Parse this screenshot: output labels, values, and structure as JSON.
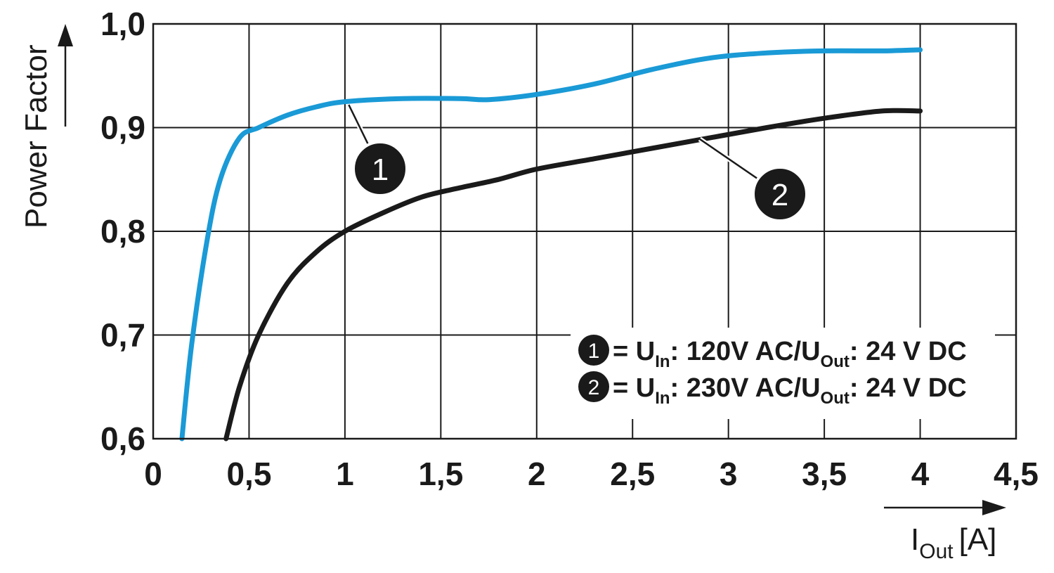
{
  "chart_data": {
    "type": "line",
    "xlabel": "I",
    "xlabel_sub": "Out",
    "xlabel_unit": "[A]",
    "ylabel": "Power Factor",
    "xlim": [
      0,
      4.5
    ],
    "ylim": [
      0.6,
      1.0
    ],
    "grid": true,
    "x_ticks": [
      0,
      0.5,
      1,
      1.5,
      2,
      2.5,
      3,
      3.5,
      4,
      4.5
    ],
    "x_tick_labels": [
      "0",
      "0,5",
      "1",
      "1,5",
      "2",
      "2,5",
      "3",
      "3,5",
      "4",
      "4,5"
    ],
    "y_ticks": [
      0.6,
      0.7,
      0.8,
      0.9,
      1.0
    ],
    "y_tick_labels": [
      "0,6",
      "0,7",
      "0,8",
      "0,9",
      "1,0"
    ],
    "legend_position": "bottom-right",
    "series": [
      {
        "marker": "1",
        "color": "#1a9ad6",
        "legend": {
          "pre": "= U",
          "sub1": "In",
          "mid": ": 120V AC/U",
          "sub2": "Out",
          "post": ": 24 V DC"
        },
        "points": [
          [
            0.15,
            0.6
          ],
          [
            0.2,
            0.69
          ],
          [
            0.28,
            0.79
          ],
          [
            0.35,
            0.85
          ],
          [
            0.45,
            0.89
          ],
          [
            0.55,
            0.9
          ],
          [
            0.7,
            0.912
          ],
          [
            0.85,
            0.92
          ],
          [
            1.0,
            0.925
          ],
          [
            1.3,
            0.928
          ],
          [
            1.6,
            0.928
          ],
          [
            1.75,
            0.927
          ],
          [
            2.0,
            0.932
          ],
          [
            2.3,
            0.942
          ],
          [
            2.6,
            0.956
          ],
          [
            2.9,
            0.967
          ],
          [
            3.2,
            0.972
          ],
          [
            3.5,
            0.974
          ],
          [
            3.8,
            0.974
          ],
          [
            4.0,
            0.975
          ]
        ]
      },
      {
        "marker": "2",
        "color": "#1a1a1a",
        "legend": {
          "pre": "= U",
          "sub1": "In",
          "mid": ": 230V AC/U",
          "sub2": "Out",
          "post": ": 24 V DC"
        },
        "points": [
          [
            0.38,
            0.6
          ],
          [
            0.45,
            0.65
          ],
          [
            0.55,
            0.7
          ],
          [
            0.7,
            0.75
          ],
          [
            0.85,
            0.78
          ],
          [
            1.0,
            0.8
          ],
          [
            1.2,
            0.818
          ],
          [
            1.4,
            0.833
          ],
          [
            1.6,
            0.842
          ],
          [
            1.8,
            0.85
          ],
          [
            2.0,
            0.86
          ],
          [
            2.3,
            0.87
          ],
          [
            2.6,
            0.88
          ],
          [
            2.9,
            0.89
          ],
          [
            3.2,
            0.9
          ],
          [
            3.5,
            0.909
          ],
          [
            3.8,
            0.916
          ],
          [
            4.0,
            0.916
          ]
        ]
      }
    ]
  }
}
